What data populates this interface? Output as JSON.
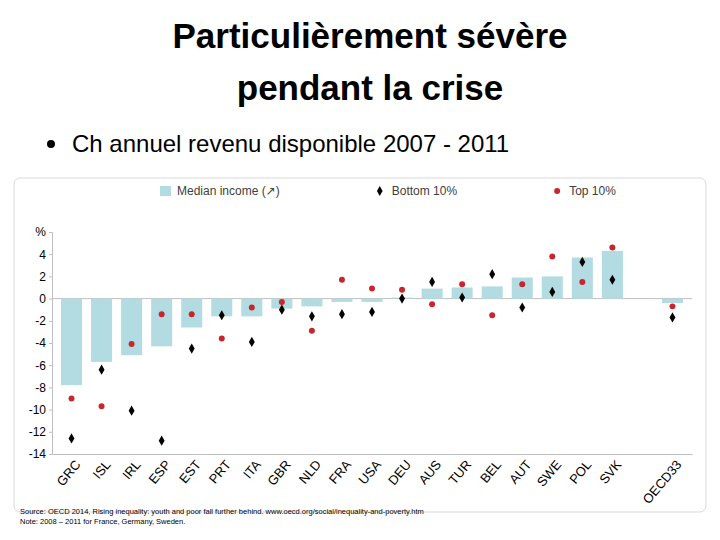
{
  "chart_data": {
    "type": "bar",
    "title": "Particulièrement sévère pendant la crise",
    "subtitle": "Ch annuel revenu disponible 2007 - 2011",
    "categories": [
      "GRC",
      "ISL",
      "IRL",
      "ESP",
      "EST",
      "PRT",
      "ITA",
      "GBR",
      "NLD",
      "FRA",
      "USA",
      "DEU",
      "AUS",
      "TUR",
      "BEL",
      "AUT",
      "SWE",
      "POL",
      "SVK",
      null,
      "OECD33"
    ],
    "series": [
      {
        "name": "Median income (↗)",
        "type": "bar",
        "color": "#b2dce2",
        "values": [
          -7.8,
          -5.7,
          -5.1,
          -4.3,
          -2.6,
          -1.6,
          -1.6,
          -0.9,
          -0.7,
          -0.3,
          -0.3,
          0.1,
          0.9,
          1.0,
          1.1,
          1.9,
          2.0,
          3.7,
          4.3,
          null,
          -0.4
        ]
      },
      {
        "name": "Bottom 10%",
        "type": "scatter",
        "marker": "diamond",
        "color": "#000000",
        "values": [
          -12.6,
          -6.4,
          -10.1,
          -12.8,
          -4.5,
          -1.5,
          -3.9,
          -1.0,
          -1.6,
          -1.4,
          -1.2,
          0.0,
          1.5,
          0.1,
          2.2,
          -0.8,
          0.6,
          3.3,
          1.7,
          null,
          -1.7
        ]
      },
      {
        "name": "Top 10%",
        "type": "scatter",
        "marker": "circle",
        "color": "#c8262d",
        "values": [
          -9.0,
          -9.7,
          -4.1,
          -1.4,
          -1.4,
          -3.6,
          -0.8,
          -0.3,
          -2.9,
          1.7,
          0.9,
          0.8,
          -0.5,
          1.3,
          -1.5,
          1.3,
          3.8,
          1.5,
          4.6,
          null,
          -0.7
        ]
      }
    ],
    "ylim": [
      -14,
      6
    ],
    "yticks": [
      -14,
      -12,
      -10,
      -8,
      -6,
      -4,
      -2,
      0,
      2,
      4,
      {
        "value": 6,
        "label": "%"
      }
    ],
    "grid": false,
    "legend": "top",
    "source": "Source: OECD 2014, Rising inequality: youth and poor fall further behind. www.oecd.org/social/inequality-and-poverty.htm",
    "note": "Note: 2008 – 2011 for France, Germany, Sweden."
  }
}
